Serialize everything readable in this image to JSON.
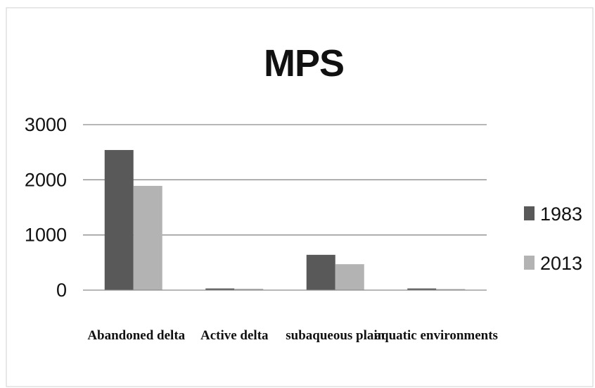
{
  "chart_data": {
    "type": "bar",
    "title": "MPS",
    "xlabel": "",
    "ylabel": "",
    "categories": [
      "Abandoned delta",
      "Active delta",
      "subaqueous plain",
      "aquatic environments"
    ],
    "series": [
      {
        "name": "1983",
        "color": "#595959",
        "values": [
          2540,
          30,
          640,
          30
        ]
      },
      {
        "name": "2013",
        "color": "#b3b3b3",
        "values": [
          1890,
          25,
          470,
          20
        ]
      }
    ],
    "ylim": [
      0,
      3000
    ],
    "yticks": [
      0,
      1000,
      2000,
      3000
    ],
    "ytick_labels": [
      "0",
      "1000",
      "2000",
      "3000"
    ],
    "grid": true,
    "legend": "right"
  }
}
